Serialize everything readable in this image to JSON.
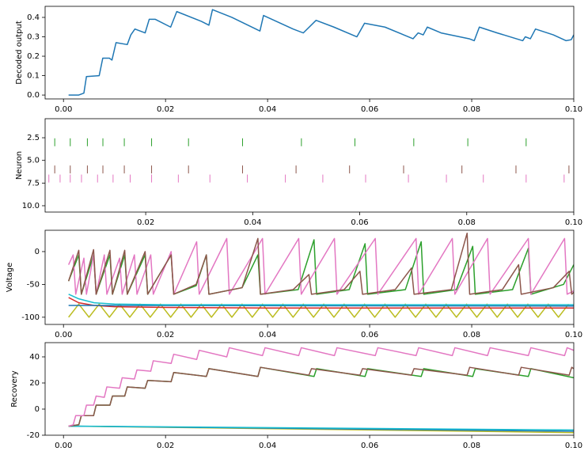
{
  "chart_data": [
    {
      "type": "line",
      "ylabel": "Decoded output",
      "xlim": [
        -0.0036,
        0.1
      ],
      "ylim": [
        -0.02,
        0.457
      ],
      "xticks": [
        {
          "value": 0,
          "label": "0.00"
        },
        {
          "value": 0.02,
          "label": "0.02"
        },
        {
          "value": 0.04,
          "label": "0.04"
        },
        {
          "value": 0.06,
          "label": "0.06"
        },
        {
          "value": 0.08,
          "label": "0.08"
        },
        {
          "value": 0.1,
          "label": "0.10"
        }
      ],
      "yticks": [
        {
          "value": 0,
          "label": "0.0"
        },
        0.1,
        0.2,
        0.3,
        0.4
      ],
      "series": [
        {
          "color": "#1f77b4",
          "x": [
            0.001,
            0.003,
            0.004,
            0.0045,
            0.007,
            0.0077,
            0.009,
            0.0095,
            0.0103,
            0.0125,
            0.0132,
            0.014,
            0.016,
            0.0168,
            0.018,
            0.021,
            0.0222,
            0.027,
            0.0285,
            0.0292,
            0.033,
            0.0385,
            0.0392,
            0.045,
            0.047,
            0.0495,
            0.053,
            0.0575,
            0.059,
            0.063,
            0.0685,
            0.0695,
            0.0705,
            0.0713,
            0.074,
            0.0795,
            0.0805,
            0.0815,
            0.085,
            0.09,
            0.0905,
            0.0915,
            0.0925,
            0.096,
            0.0985,
            0.0995,
            0.1
          ],
          "values": [
            0,
            0,
            0.01,
            0.095,
            0.1,
            0.19,
            0.19,
            0.18,
            0.27,
            0.26,
            0.31,
            0.34,
            0.32,
            0.39,
            0.39,
            0.35,
            0.43,
            0.38,
            0.36,
            0.44,
            0.4,
            0.33,
            0.41,
            0.34,
            0.32,
            0.385,
            0.35,
            0.3,
            0.37,
            0.35,
            0.29,
            0.32,
            0.31,
            0.35,
            0.32,
            0.29,
            0.28,
            0.35,
            0.32,
            0.28,
            0.3,
            0.29,
            0.34,
            0.31,
            0.28,
            0.285,
            0.31
          ]
        }
      ]
    },
    {
      "type": "raster",
      "ylabel": "Neuron",
      "xlim": [
        0.0012,
        0.1
      ],
      "ylim": [
        10.7,
        0.4
      ],
      "xticks": [
        {
          "value": 0.02,
          "label": "0.02"
        },
        {
          "value": 0.04,
          "label": "0.04"
        },
        {
          "value": 0.06,
          "label": "0.06"
        },
        {
          "value": 0.08,
          "label": "0.08"
        },
        {
          "value": 0.1,
          "label": "0.10"
        }
      ],
      "yticks": [
        2.5,
        {
          "value": 5,
          "label": "5.0"
        },
        7.5,
        {
          "value": 10,
          "label": "10.0"
        }
      ],
      "series": [
        {
          "color": "#2ca02c",
          "y": 3,
          "x": [
            0.003,
            0.0059,
            0.0091,
            0.012,
            0.016,
            0.0211,
            0.028,
            0.0381,
            0.0491,
            0.0591,
            0.0701,
            0.0802,
            0.0911
          ]
        },
        {
          "color": "#8c564b",
          "y": 6,
          "x": [
            0.003,
            0.0059,
            0.0091,
            0.012,
            0.016,
            0.0211,
            0.028,
            0.0381,
            0.0481,
            0.0581,
            0.0682,
            0.0791,
            0.0892,
            0.0991
          ]
        },
        {
          "color": "#e377c2",
          "y": 7,
          "x": [
            0.0019,
            0.004,
            0.0059,
            0.008,
            0.011,
            0.0139,
            0.0171,
            0.0211,
            0.0261,
            0.032,
            0.039,
            0.0461,
            0.0531,
            0.0611,
            0.0691,
            0.0762,
            0.0831,
            0.0911,
            0.0982
          ]
        }
      ]
    },
    {
      "type": "line",
      "ylabel": "Voltage",
      "xlim": [
        -0.0036,
        0.1
      ],
      "ylim": [
        -111,
        32.5
      ],
      "xticks": [
        {
          "value": 0,
          "label": "0.00"
        },
        {
          "value": 0.02,
          "label": "0.02"
        },
        {
          "value": 0.04,
          "label": "0.04"
        },
        {
          "value": 0.06,
          "label": "0.06"
        },
        {
          "value": 0.08,
          "label": "0.08"
        },
        {
          "value": 0.1,
          "label": "0.10"
        }
      ],
      "yticks": [
        0,
        -50,
        -100
      ],
      "series": [
        {
          "color": "#bcbd22",
          "x": [
            0.001,
            0.003,
            0.005,
            0.007,
            0.009,
            0.011,
            0.013,
            0.015,
            0.017,
            0.019,
            0.021,
            0.023,
            0.025,
            0.027,
            0.029,
            0.031,
            0.033,
            0.035,
            0.037,
            0.039,
            0.041,
            0.043,
            0.045,
            0.047,
            0.049,
            0.051,
            0.053,
            0.055,
            0.057,
            0.059,
            0.061,
            0.063,
            0.065,
            0.067,
            0.069,
            0.071,
            0.073,
            0.075,
            0.077,
            0.079,
            0.081,
            0.083,
            0.085,
            0.087,
            0.089,
            0.091,
            0.093,
            0.095,
            0.097,
            0.099
          ],
          "values": [
            -100,
            -80,
            -100,
            -80,
            -100,
            -80,
            -100,
            -80,
            -100,
            -80,
            -100,
            -80,
            -100,
            -80,
            -100,
            -80,
            -100,
            -80,
            -100,
            -80,
            -100,
            -80,
            -100,
            -80,
            -100,
            -80,
            -100,
            -80,
            -100,
            -80,
            -100,
            -80,
            -100,
            -80,
            -100,
            -80,
            -100,
            -80,
            -100,
            -80,
            -100,
            -80,
            -100,
            -80,
            -100,
            -80,
            -100,
            -80,
            -100,
            -80
          ]
        },
        {
          "color": "#d62728",
          "x": [
            0.001,
            0.003,
            0.006,
            0.01,
            0.02,
            0.04,
            0.1
          ],
          "values": [
            -70,
            -78,
            -82,
            -84,
            -85,
            -86,
            -86
          ]
        },
        {
          "color": "#1f77b4",
          "x": [
            0.001,
            0.1
          ],
          "values": [
            -82,
            -83
          ]
        },
        {
          "color": "#17becf",
          "x": [
            0.001,
            0.003,
            0.006,
            0.01,
            0.02,
            0.1
          ],
          "values": [
            -65,
            -72,
            -78,
            -80,
            -81,
            -81
          ]
        },
        {
          "color": "#2ca02c",
          "x": [
            0.001,
            0.003,
            0.0035,
            0.0059,
            0.0064,
            0.0091,
            0.0096,
            0.012,
            0.0125,
            0.016,
            0.0165,
            0.0211,
            0.0216,
            0.026,
            0.028,
            0.0285,
            0.035,
            0.0381,
            0.0386,
            0.046,
            0.0491,
            0.0496,
            0.056,
            0.0591,
            0.0596,
            0.067,
            0.0701,
            0.0706,
            0.077,
            0.0802,
            0.0807,
            0.088,
            0.0911,
            0.0916,
            0.098,
            0.1
          ],
          "values": [
            -45,
            -5,
            -65,
            -5,
            -65,
            -5,
            -65,
            -5,
            -65,
            -5,
            -65,
            -5,
            -65,
            -52,
            -5,
            -65,
            -55,
            -5,
            -65,
            -58,
            18,
            -65,
            -58,
            12,
            -65,
            -58,
            15,
            -65,
            -58,
            8,
            -65,
            -58,
            5,
            -65,
            -50,
            -20
          ]
        },
        {
          "color": "#e377c2",
          "x": [
            0.001,
            0.0019,
            0.0024,
            0.004,
            0.0045,
            0.0059,
            0.0064,
            0.008,
            0.0085,
            0.011,
            0.0115,
            0.0139,
            0.0144,
            0.0171,
            0.0176,
            0.0211,
            0.0216,
            0.0261,
            0.0266,
            0.032,
            0.0325,
            0.039,
            0.0395,
            0.0461,
            0.0466,
            0.0531,
            0.0536,
            0.0611,
            0.0616,
            0.0691,
            0.0696,
            0.0762,
            0.0767,
            0.0831,
            0.0836,
            0.0911,
            0.0916,
            0.0982,
            0.0987,
            0.1
          ],
          "values": [
            -20,
            -5,
            -65,
            -10,
            -65,
            -5,
            -65,
            -5,
            -65,
            -10,
            -65,
            -5,
            -65,
            -5,
            -65,
            0,
            -65,
            15,
            -65,
            20,
            -65,
            20,
            -65,
            20,
            -65,
            20,
            -65,
            20,
            -65,
            20,
            -65,
            20,
            -65,
            20,
            -65,
            20,
            -65,
            20,
            -65,
            -60
          ]
        },
        {
          "color": "#8c564b",
          "x": [
            0.001,
            0.003,
            0.0035,
            0.0059,
            0.0064,
            0.0091,
            0.0096,
            0.012,
            0.0125,
            0.016,
            0.0165,
            0.0211,
            0.0216,
            0.026,
            0.028,
            0.0285,
            0.035,
            0.0381,
            0.0386,
            0.045,
            0.0481,
            0.0486,
            0.055,
            0.0581,
            0.0586,
            0.065,
            0.0682,
            0.0687,
            0.076,
            0.0791,
            0.0796,
            0.086,
            0.0892,
            0.0897,
            0.096,
            0.0991,
            0.0996,
            0.1
          ],
          "values": [
            -45,
            2,
            -65,
            3,
            -65,
            2,
            -65,
            2,
            -65,
            0,
            -65,
            -5,
            -65,
            -50,
            -5,
            -65,
            -55,
            20,
            -65,
            -58,
            -35,
            -65,
            -58,
            -30,
            -65,
            -58,
            -25,
            -65,
            -58,
            28,
            -65,
            -58,
            -20,
            -65,
            -55,
            -30,
            -65,
            -62
          ]
        }
      ]
    },
    {
      "type": "line",
      "ylabel": "Recovery",
      "xlim": [
        -0.0036,
        0.1
      ],
      "ylim": [
        -20,
        50.9
      ],
      "xticks": [
        {
          "value": 0,
          "label": "0.00"
        },
        {
          "value": 0.02,
          "label": "0.02"
        },
        {
          "value": 0.04,
          "label": "0.04"
        },
        {
          "value": 0.06,
          "label": "0.06"
        },
        {
          "value": 0.08,
          "label": "0.08"
        },
        {
          "value": 0.1,
          "label": "0.10"
        }
      ],
      "yticks": [
        40,
        20,
        0,
        -20
      ],
      "series": [
        {
          "color": "#bcbd22",
          "x": [
            0.001,
            0.1
          ],
          "values": [
            -13,
            -18
          ]
        },
        {
          "color": "#1f77b4",
          "x": [
            0.001,
            0.1
          ],
          "values": [
            -13,
            -17
          ]
        },
        {
          "color": "#17becf",
          "x": [
            0.001,
            0.1
          ],
          "values": [
            -13,
            -16
          ]
        },
        {
          "color": "#2ca02c",
          "x": [
            0.001,
            0.003,
            0.0035,
            0.0059,
            0.0064,
            0.0091,
            0.0096,
            0.012,
            0.0125,
            0.016,
            0.0165,
            0.0211,
            0.0216,
            0.028,
            0.0285,
            0.0381,
            0.0386,
            0.0491,
            0.0496,
            0.0591,
            0.0596,
            0.0701,
            0.0706,
            0.0802,
            0.0807,
            0.0911,
            0.0916,
            0.1
          ],
          "values": [
            -13,
            -12,
            -5,
            -5,
            3,
            3,
            10,
            10,
            17,
            16,
            22,
            21,
            28,
            25,
            31,
            25,
            32,
            25,
            31,
            25,
            31,
            25,
            31,
            25,
            31,
            25,
            31,
            24
          ]
        },
        {
          "color": "#8c564b",
          "x": [
            0.001,
            0.003,
            0.0035,
            0.0059,
            0.0064,
            0.0091,
            0.0096,
            0.012,
            0.0125,
            0.016,
            0.0165,
            0.0211,
            0.0216,
            0.028,
            0.0285,
            0.0381,
            0.0386,
            0.0481,
            0.0486,
            0.0581,
            0.0586,
            0.0682,
            0.0687,
            0.0791,
            0.0796,
            0.0892,
            0.0897,
            0.0991,
            0.0996,
            0.1
          ],
          "values": [
            -13,
            -12,
            -5,
            -5,
            3,
            3,
            10,
            10,
            17,
            16,
            22,
            21,
            28,
            25,
            31,
            25,
            32,
            26,
            31,
            26,
            31,
            26,
            31,
            26,
            32,
            26,
            32,
            26,
            32,
            31
          ]
        },
        {
          "color": "#e377c2",
          "x": [
            0.001,
            0.0019,
            0.0024,
            0.004,
            0.0045,
            0.0059,
            0.0064,
            0.008,
            0.0085,
            0.011,
            0.0115,
            0.0139,
            0.0144,
            0.0171,
            0.0176,
            0.0211,
            0.0216,
            0.0261,
            0.0266,
            0.032,
            0.0325,
            0.039,
            0.0395,
            0.0461,
            0.0466,
            0.0531,
            0.0536,
            0.0611,
            0.0616,
            0.0691,
            0.0696,
            0.0762,
            0.0767,
            0.0831,
            0.0836,
            0.0911,
            0.0916,
            0.0982,
            0.0987,
            0.1
          ],
          "values": [
            -13,
            -12,
            -5,
            -5,
            3,
            3,
            10,
            9,
            17,
            16,
            24,
            23,
            30,
            29,
            37,
            35,
            42,
            38,
            45,
            40,
            47,
            41,
            47,
            41,
            47,
            41,
            47,
            41,
            47,
            41,
            47,
            41,
            47,
            41,
            47,
            41,
            47,
            41,
            47,
            45
          ]
        }
      ]
    }
  ]
}
